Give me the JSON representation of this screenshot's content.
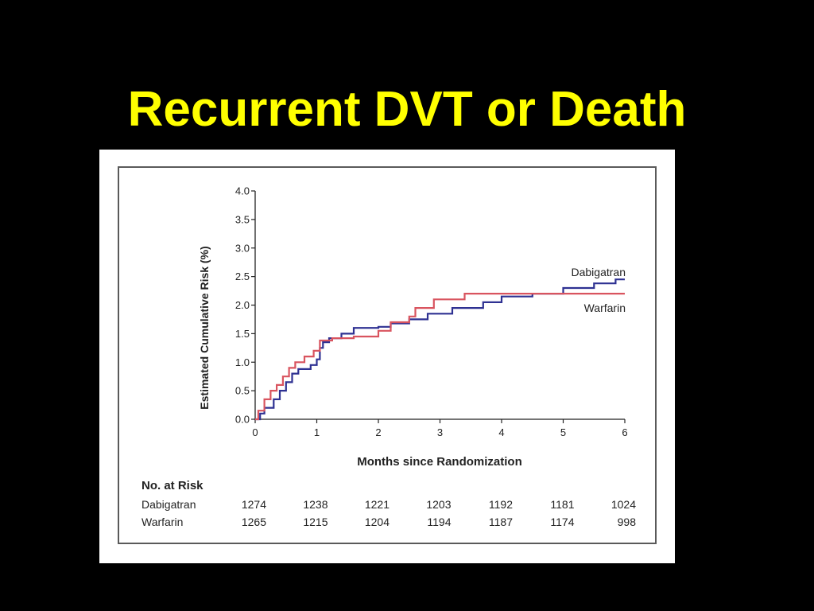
{
  "slide": {
    "title": "Recurrent DVT or Death"
  },
  "colors": {
    "background": "#000000",
    "title": "#ffff00",
    "dabigatran": "#2e3192",
    "warfarin": "#d9545f",
    "axis": "#222222"
  },
  "chart_data": {
    "type": "line",
    "title": "",
    "xlabel": "Months since Randomization",
    "ylabel": "Estimated Cumulative Risk (%)",
    "xlim": [
      0,
      6
    ],
    "ylim": [
      0,
      4.0
    ],
    "x_ticks": [
      "0",
      "1",
      "2",
      "3",
      "4",
      "5",
      "6"
    ],
    "y_ticks": [
      "0.0",
      "0.5",
      "1.0",
      "1.5",
      "2.0",
      "2.5",
      "3.0",
      "3.5",
      "4.0"
    ],
    "grid": false,
    "step": true,
    "series": [
      {
        "name": "Dabigatran",
        "color": "#2e3192",
        "points": [
          [
            0,
            0.0
          ],
          [
            0.08,
            0.1
          ],
          [
            0.15,
            0.2
          ],
          [
            0.3,
            0.35
          ],
          [
            0.4,
            0.5
          ],
          [
            0.5,
            0.65
          ],
          [
            0.6,
            0.8
          ],
          [
            0.7,
            0.88
          ],
          [
            0.9,
            0.95
          ],
          [
            1.0,
            1.05
          ],
          [
            1.05,
            1.25
          ],
          [
            1.1,
            1.35
          ],
          [
            1.2,
            1.42
          ],
          [
            1.4,
            1.5
          ],
          [
            1.6,
            1.6
          ],
          [
            2.0,
            1.62
          ],
          [
            2.2,
            1.68
          ],
          [
            2.5,
            1.75
          ],
          [
            2.8,
            1.85
          ],
          [
            3.2,
            1.95
          ],
          [
            3.7,
            2.05
          ],
          [
            4.0,
            2.15
          ],
          [
            4.5,
            2.2
          ],
          [
            5.0,
            2.3
          ],
          [
            5.5,
            2.38
          ],
          [
            5.85,
            2.45
          ],
          [
            6.0,
            2.45
          ]
        ]
      },
      {
        "name": "Warfarin",
        "color": "#d9545f",
        "points": [
          [
            0,
            0.0
          ],
          [
            0.05,
            0.15
          ],
          [
            0.15,
            0.35
          ],
          [
            0.25,
            0.5
          ],
          [
            0.35,
            0.6
          ],
          [
            0.45,
            0.75
          ],
          [
            0.55,
            0.9
          ],
          [
            0.65,
            1.0
          ],
          [
            0.8,
            1.1
          ],
          [
            0.95,
            1.2
          ],
          [
            1.05,
            1.38
          ],
          [
            1.25,
            1.42
          ],
          [
            1.6,
            1.45
          ],
          [
            2.0,
            1.55
          ],
          [
            2.2,
            1.7
          ],
          [
            2.5,
            1.8
          ],
          [
            2.6,
            1.95
          ],
          [
            2.9,
            2.1
          ],
          [
            3.4,
            2.2
          ],
          [
            6.0,
            2.2
          ]
        ]
      }
    ],
    "series_labels": [
      "Dabigatran",
      "Warfarin"
    ],
    "at_risk": {
      "heading": "No. at Risk",
      "rows": [
        {
          "label": "Dabigatran",
          "values": [
            "1274",
            "1238",
            "1221",
            "1203",
            "1192",
            "1181",
            "1024"
          ]
        },
        {
          "label": "Warfarin",
          "values": [
            "1265",
            "1215",
            "1204",
            "1194",
            "1187",
            "1174",
            "998"
          ]
        }
      ]
    }
  }
}
